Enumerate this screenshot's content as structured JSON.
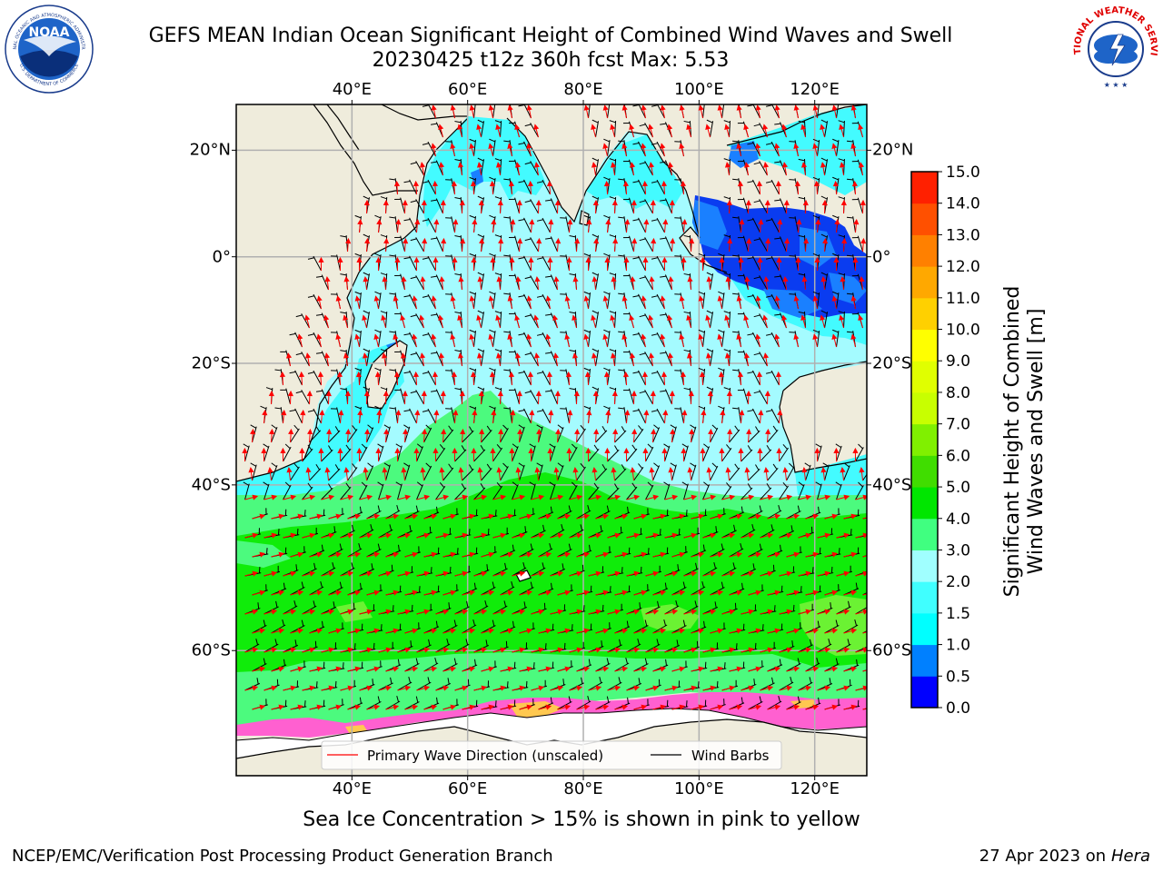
{
  "header": {
    "title_line1": "GEFS MEAN Indian Ocean Significant Height of Combined Wind Waves and Swell",
    "title_line2": "20230425 t12z 360h fcst   Max: 5.53"
  },
  "logos": {
    "left": {
      "icon": "noaa-logo",
      "text_top": "NATIONAL OCEANIC AND ATMOSPHERIC ADMINISTRATION",
      "text_bottom": "U.S. DEPARTMENT OF COMMERCE",
      "center": "NOAA"
    },
    "right": {
      "icon": "nws-logo",
      "text": "NATIONAL WEATHER SERVICE"
    }
  },
  "map": {
    "lon_ticks": [
      "40°E",
      "60°E",
      "80°E",
      "100°E",
      "120°E"
    ],
    "lon_values": [
      40,
      60,
      80,
      100,
      120
    ],
    "lat_ticks": [
      "20°N",
      "0°",
      "20°S",
      "40°S",
      "60°S"
    ],
    "lat_values": [
      20,
      0,
      -20,
      -40,
      -60
    ],
    "extent": {
      "lon": [
        20,
        129
      ],
      "lat": [
        -70,
        28
      ]
    },
    "legend": {
      "wave_label": "Primary Wave Direction (unscaled)",
      "wind_label": "Wind Barbs",
      "wave_color": "#ff0000",
      "wind_color": "#000000"
    },
    "colors": {
      "land": "#efecdc",
      "ice": "#ffffff",
      "grid": "#b0b0b0"
    }
  },
  "colorbar": {
    "label_line1": "Significant Height of Combined",
    "label_line2": "Wind Waves and Swell [m]",
    "ticks": [
      "0.0",
      "0.5",
      "1.0",
      "1.5",
      "2.0",
      "3.0",
      "4.0",
      "5.0",
      "6.0",
      "7.0",
      "8.0",
      "9.0",
      "10.0",
      "11.0",
      "12.0",
      "13.0",
      "14.0",
      "15.0"
    ],
    "colors": [
      "#0000ff",
      "#0080ff",
      "#00ffff",
      "#40ffff",
      "#a0ffff",
      "#40ff80",
      "#00e600",
      "#40dd00",
      "#80f000",
      "#c8ff00",
      "#e0ff00",
      "#ffff00",
      "#ffd000",
      "#ffa800",
      "#ff8000",
      "#ff5000",
      "#ff2000"
    ]
  },
  "subcaption": "Sea Ice Concentration > 15% is shown in pink to yellow",
  "footer": {
    "left": "NCEP/EMC/Verification Post Processing Product Generation Branch",
    "right_prefix": "27 Apr 2023 on ",
    "right_system": "Hera"
  }
}
